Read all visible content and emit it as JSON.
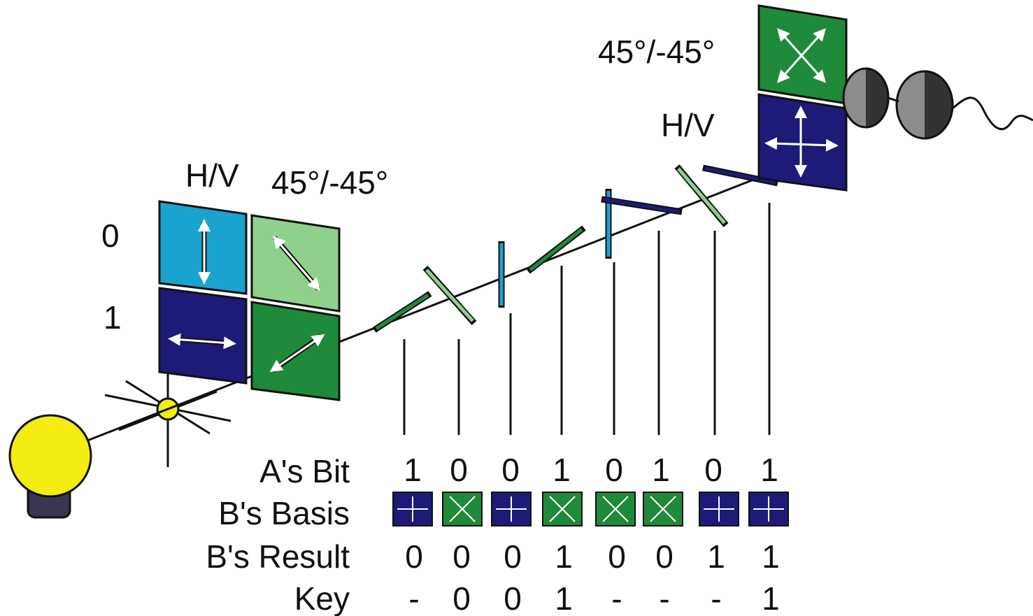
{
  "sender": {
    "label_hv": "H/V",
    "label_diag": "45°/-45°",
    "label_bit0": "0",
    "label_bit1": "1"
  },
  "receiver": {
    "label_diag": "45°/-45°",
    "label_hv": "H/V"
  },
  "table": {
    "row_labels": {
      "a_bit": "A's Bit",
      "b_basis": "B's Basis",
      "b_result": "B's Result",
      "key": "Key"
    },
    "a_bits": [
      "1",
      "0",
      "0",
      "1",
      "0",
      "1",
      "0",
      "1"
    ],
    "b_basis": [
      "hv",
      "diag",
      "hv",
      "diag",
      "diag",
      "diag",
      "hv",
      "hv"
    ],
    "b_result": [
      "0",
      "0",
      "0",
      "1",
      "0",
      "0",
      "1",
      "1"
    ],
    "key": [
      "-",
      "0",
      "0",
      "1",
      "-",
      "-",
      "-",
      "1"
    ]
  },
  "photons": [
    "diag-ne",
    "diag-nw",
    "vertical",
    "diag-ne",
    "vertical",
    "horizontal",
    "diag-nw",
    "horizontal"
  ],
  "colors": {
    "hv_zero": "#1ba3cf",
    "hv_one": "#1e1a78",
    "diag_zero": "#8fd08a",
    "diag_one": "#1f8a3a",
    "bulb": "#f4ec12",
    "detector": "#8c8c8c"
  }
}
